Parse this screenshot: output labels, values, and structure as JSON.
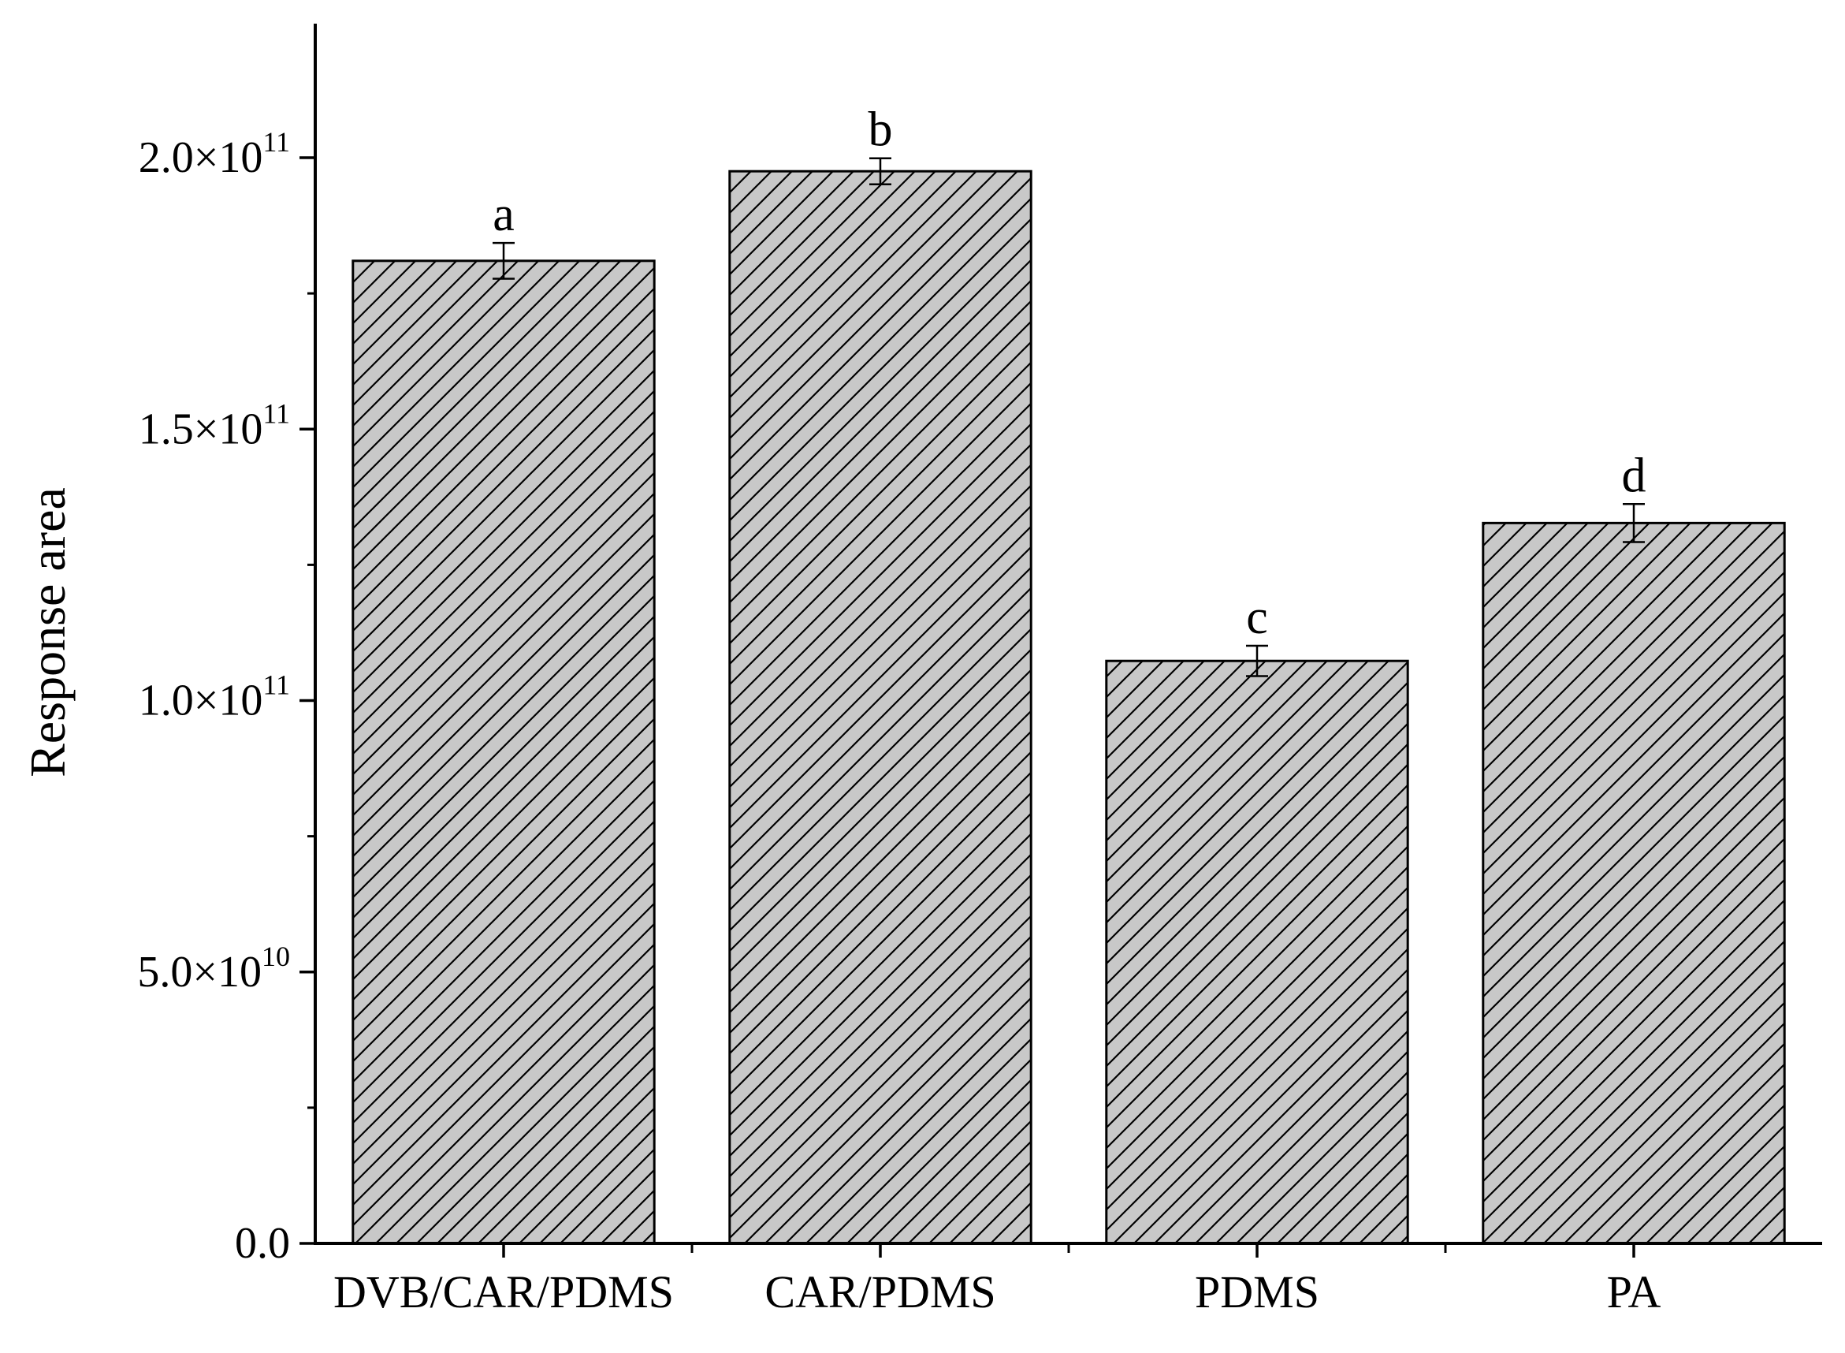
{
  "chart_data": {
    "type": "bar",
    "categories": [
      "DVB/CAR/PDMS",
      "CAR/PDMS",
      "PDMS",
      "PA"
    ],
    "values": [
      181000000000.0,
      197500000000.0,
      107300000000.0,
      132700000000.0
    ],
    "errors": [
      3300000000.0,
      2400000000.0,
      2800000000.0,
      3500000000.0
    ],
    "letters": [
      "a",
      "b",
      "c",
      "d"
    ],
    "ylabel": "Response area",
    "xlabel": "",
    "title": "",
    "ylim": [
      0,
      225000000000.0
    ],
    "yticks": [
      {
        "value": 0,
        "mant": "0.0",
        "exp": ""
      },
      {
        "value": 50000000000.0,
        "mant": "5.0×10",
        "exp": "10"
      },
      {
        "value": 100000000000.0,
        "mant": "1.0×10",
        "exp": "11"
      },
      {
        "value": 150000000000.0,
        "mant": "1.5×10",
        "exp": "11"
      },
      {
        "value": 200000000000.0,
        "mant": "2.0×10",
        "exp": "11"
      }
    ],
    "minor_tick_step": 25000000000.0,
    "grid": false,
    "legend": "none",
    "colors": {
      "bar_fill": "#c8c8c8",
      "hatch": "#000000",
      "axis": "#000000"
    }
  }
}
